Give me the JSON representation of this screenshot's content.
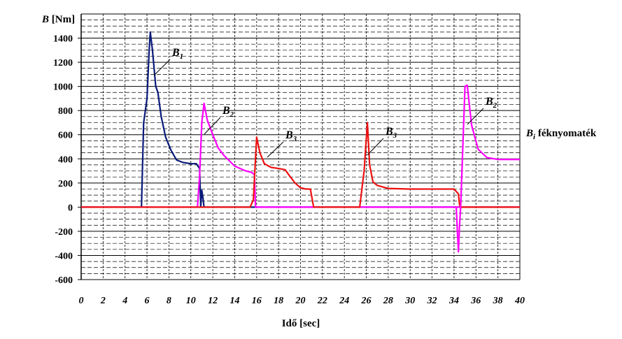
{
  "chart_data": {
    "type": "line",
    "ylabel_symbol": "B",
    "ylabel_unit": " [Nm]",
    "xlabel": "Idő [sec]",
    "xlim": [
      0,
      40
    ],
    "ylim": [
      -600,
      1600
    ],
    "x_ticks": [
      "0",
      "2",
      "4",
      "6",
      "8",
      "10",
      "12",
      "14",
      "16",
      "18",
      "20",
      "22",
      "24",
      "26",
      "28",
      "30",
      "32",
      "34",
      "36",
      "38",
      "40"
    ],
    "y_ticks": [
      "1400",
      "1200",
      "1000",
      "800",
      "600",
      "400",
      "200",
      "0",
      "-200",
      "-400",
      "-600"
    ],
    "legend_note": {
      "symbol": "B",
      "sub": "i",
      "text": "  féknyomaték"
    },
    "annotations": [
      {
        "symbol": "B",
        "sub": "1"
      },
      {
        "symbol": "B",
        "sub": "2"
      },
      {
        "symbol": "B",
        "sub": "3"
      },
      {
        "symbol": "B",
        "sub": "3"
      },
      {
        "symbol": "B",
        "sub": "2"
      }
    ],
    "series": [
      {
        "color": "#0a1a7a",
        "points": [
          [
            0,
            0
          ],
          [
            5.5,
            0
          ],
          [
            5.7,
            700
          ],
          [
            6.0,
            900
          ],
          [
            6.2,
            1300
          ],
          [
            6.3,
            1450
          ],
          [
            6.5,
            1300
          ],
          [
            6.8,
            1000
          ],
          [
            7.0,
            950
          ],
          [
            7.3,
            750
          ],
          [
            7.7,
            580
          ],
          [
            8.2,
            470
          ],
          [
            8.7,
            390
          ],
          [
            9.3,
            370
          ],
          [
            10.0,
            360
          ],
          [
            10.5,
            360
          ],
          [
            10.8,
            320
          ],
          [
            10.9,
            0
          ],
          [
            11.0,
            140
          ],
          [
            11.1,
            80
          ],
          [
            11.2,
            0
          ],
          [
            40,
            0
          ]
        ]
      },
      {
        "color": "#ff00ff",
        "points": [
          [
            0,
            0
          ],
          [
            10.6,
            0
          ],
          [
            10.8,
            260
          ],
          [
            11.0,
            700
          ],
          [
            11.2,
            860
          ],
          [
            11.5,
            720
          ],
          [
            12.0,
            600
          ],
          [
            12.5,
            490
          ],
          [
            13.0,
            430
          ],
          [
            14.0,
            340
          ],
          [
            15.0,
            300
          ],
          [
            15.5,
            290
          ],
          [
            15.8,
            270
          ],
          [
            15.9,
            0
          ],
          [
            40,
            0
          ]
        ]
      },
      {
        "color": "#ee1111",
        "points": [
          [
            0,
            0
          ],
          [
            15.4,
            0
          ],
          [
            15.7,
            60
          ],
          [
            16.0,
            580
          ],
          [
            16.3,
            450
          ],
          [
            16.7,
            360
          ],
          [
            17.3,
            330
          ],
          [
            18.0,
            320
          ],
          [
            18.6,
            310
          ],
          [
            19.0,
            260
          ],
          [
            19.5,
            200
          ],
          [
            20.0,
            160
          ],
          [
            20.5,
            150
          ],
          [
            20.9,
            150
          ],
          [
            21.2,
            0
          ],
          [
            25.4,
            0
          ],
          [
            25.8,
            300
          ],
          [
            26.1,
            700
          ],
          [
            26.3,
            350
          ],
          [
            26.6,
            210
          ],
          [
            27.0,
            180
          ],
          [
            28.0,
            155
          ],
          [
            30.0,
            150
          ],
          [
            32.0,
            150
          ],
          [
            34.0,
            150
          ],
          [
            34.4,
            110
          ],
          [
            34.5,
            20
          ],
          [
            34.6,
            0
          ],
          [
            40,
            0
          ]
        ]
      },
      {
        "color": "#ff00ff",
        "points": [
          [
            34.2,
            0
          ],
          [
            34.3,
            -200
          ],
          [
            34.4,
            -370
          ],
          [
            34.5,
            -150
          ],
          [
            34.6,
            0
          ],
          [
            34.8,
            500
          ],
          [
            35.0,
            1000
          ],
          [
            35.2,
            1010
          ],
          [
            35.6,
            680
          ],
          [
            36.2,
            480
          ],
          [
            37.0,
            410
          ],
          [
            38.0,
            395
          ],
          [
            40.0,
            395
          ]
        ]
      }
    ]
  }
}
